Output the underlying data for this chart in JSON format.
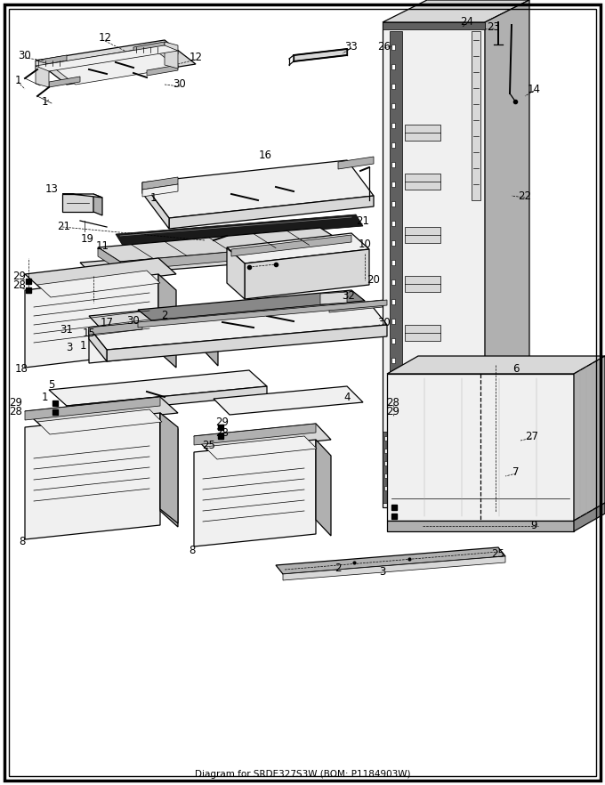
{
  "title": "Diagram for SRDE327S3W (BOM: P1184903W)",
  "bg_color": "#ffffff",
  "border_color": "#000000",
  "fig_width": 6.8,
  "fig_height": 8.82,
  "dpi": 100,
  "lw_main": 0.9,
  "lw_thin": 0.5,
  "lw_thick": 1.4,
  "face_light": "#f0f0f0",
  "face_mid": "#d8d8d8",
  "face_dark": "#b0b0b0",
  "face_vdark": "#606060",
  "footer_text": "Diagram for SRDE327S3W (BOM: P1184903W)"
}
